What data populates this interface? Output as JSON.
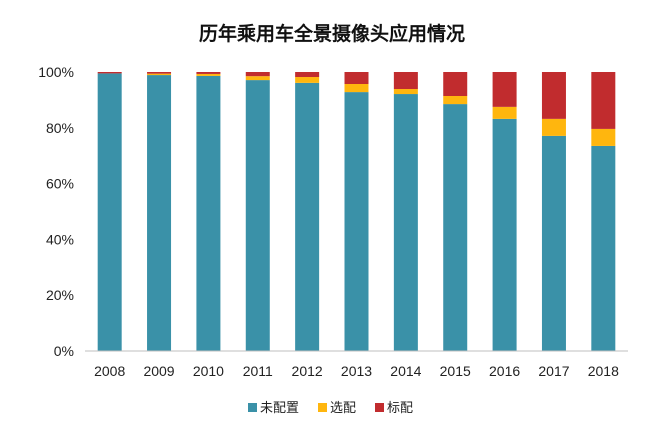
{
  "chart_data": {
    "type": "bar",
    "stacked": true,
    "title": "历年乘用车全景摄像头应用情况",
    "xlabel": "",
    "ylabel": "",
    "ylim": [
      0,
      100
    ],
    "yticks": [
      "0%",
      "20%",
      "40%",
      "60%",
      "80%",
      "100%"
    ],
    "ytick_values": [
      0,
      20,
      40,
      60,
      80,
      100
    ],
    "categories": [
      "2008",
      "2009",
      "2010",
      "2011",
      "2012",
      "2013",
      "2014",
      "2015",
      "2016",
      "2017",
      "2018"
    ],
    "series": [
      {
        "name": "未配置",
        "color": "#3A91A8",
        "values": [
          99.5,
          98.9,
          98.6,
          97.1,
          96.1,
          92.8,
          92.1,
          88.5,
          83.2,
          77.1,
          73.5
        ]
      },
      {
        "name": "选配",
        "color": "#FFB60E",
        "values": [
          0.0,
          0.5,
          0.7,
          1.4,
          2.1,
          2.9,
          1.8,
          2.9,
          4.3,
          6.1,
          6.1
        ]
      },
      {
        "name": "标配",
        "color": "#C12C2E",
        "values": [
          0.5,
          0.6,
          0.7,
          1.5,
          1.8,
          4.3,
          6.1,
          8.6,
          12.5,
          16.8,
          20.4
        ]
      }
    ],
    "grid": false,
    "legend_position": "bottom"
  }
}
